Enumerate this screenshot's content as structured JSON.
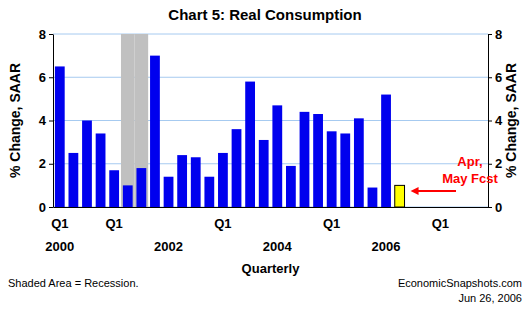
{
  "chart_data": {
    "type": "bar",
    "title": "Chart 5: Real Consumption",
    "x_label": "Quarterly",
    "y_label": "% Change, SAAR",
    "y2_label": "% Change, SAAR",
    "categories": [
      "Q1",
      null,
      null,
      null,
      "Q1",
      null,
      null,
      null,
      null,
      null,
      null,
      null,
      "Q1",
      null,
      null,
      null,
      null,
      null,
      null,
      null,
      "Q1",
      null,
      null,
      null,
      null,
      null,
      null,
      null,
      "Q1",
      null,
      null,
      null
    ],
    "x_sublabels": [
      "2000",
      null,
      null,
      null,
      null,
      null,
      null,
      null,
      "2002",
      null,
      null,
      null,
      null,
      null,
      null,
      null,
      "2004",
      null,
      null,
      null,
      null,
      null,
      null,
      null,
      "2006",
      null,
      null,
      null,
      null,
      null,
      null,
      null
    ],
    "series": [
      {
        "color": "#0000ee",
        "values": [
          6.5,
          2.5,
          4.0,
          3.4,
          1.7,
          1.0,
          1.8,
          7.0,
          1.4,
          2.4,
          2.3,
          1.4,
          2.5,
          3.6,
          5.8,
          3.1,
          4.7,
          1.9,
          4.4,
          4.3,
          3.5,
          3.4,
          4.1,
          0.9,
          5.2,
          null,
          null,
          null,
          null,
          null,
          null,
          null
        ]
      },
      {
        "color": "#ffff00",
        "values": [
          null,
          null,
          null,
          null,
          null,
          null,
          null,
          null,
          null,
          null,
          null,
          null,
          null,
          null,
          null,
          null,
          null,
          null,
          null,
          null,
          null,
          null,
          null,
          null,
          null,
          1.0,
          null,
          null,
          null,
          null,
          null,
          null
        ]
      }
    ],
    "shaded": [
      false,
      false,
      false,
      false,
      false,
      true,
      true,
      false,
      false,
      false,
      false,
      false,
      false,
      false,
      false,
      false,
      false,
      false,
      false,
      false,
      false,
      false,
      false,
      false,
      false,
      false,
      false,
      false,
      false,
      false,
      false,
      false
    ],
    "ylim": [
      0,
      8
    ],
    "yticks": [
      0,
      2,
      4,
      6,
      8
    ],
    "y2lim": [
      0,
      8
    ],
    "y2ticks": [
      0,
      2,
      4,
      6,
      8
    ],
    "grid": true,
    "annotations": [
      "Apr,",
      "May Fcst",
      "Shaded Area = Recession.",
      "EconomicSnapshots.com",
      "Jun 26, 2006"
    ]
  }
}
